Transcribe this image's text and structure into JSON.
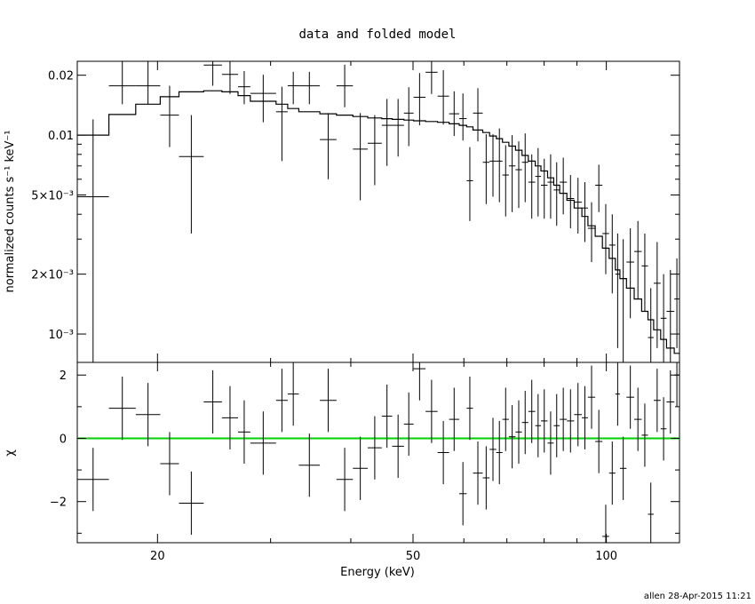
{
  "chart_data": [
    {
      "type": "scatter",
      "panel": "top",
      "title": "data and folded model",
      "ylabel": "normalized counts s⁻¹ keV⁻¹",
      "xscale": "log",
      "yscale": "log",
      "xlim": [
        15,
        130
      ],
      "ylim": [
        0.00072,
        0.0235
      ],
      "yticks": [
        {
          "value": 0.02,
          "label": "0.02"
        },
        {
          "value": 0.01,
          "label": "0.01"
        },
        {
          "value": 0.005,
          "label": "5×10⁻³"
        },
        {
          "value": 0.002,
          "label": "2×10⁻³"
        },
        {
          "value": 0.001,
          "label": "10⁻³"
        }
      ],
      "series": [
        {
          "kind": "data",
          "x_low": [
            15.0,
            16.8,
            18.5,
            20.2,
            21.6,
            23.6,
            25.2,
            26.7,
            27.9,
            30.6,
            31.9,
            33.2,
            35.8,
            38.0,
            40.3,
            42.5,
            44.7,
            46.4,
            48.4,
            50.1,
            52.3,
            54.6,
            56.9,
            59.0,
            60.6,
            62.0,
            64.2,
            65.8,
            67.4,
            68.9,
            70.5,
            72.2,
            73.9,
            75.6,
            77.5,
            79.1,
            81.0,
            82.8,
            84.6,
            86.8,
            89.1,
            91.6,
            93.6,
            96.1,
            98.6,
            101.0,
            103.3,
            105.0,
            107.5,
            110.5,
            113.5,
            116.1,
            118.5,
            121.5,
            124.1,
            127.6
          ],
          "x_high": [
            16.8,
            18.5,
            20.2,
            21.6,
            23.6,
            25.2,
            26.7,
            27.9,
            30.6,
            31.9,
            33.2,
            35.8,
            38.0,
            40.3,
            42.5,
            44.7,
            46.4,
            48.4,
            50.1,
            52.3,
            54.6,
            56.9,
            59.0,
            60.6,
            62.0,
            64.2,
            65.8,
            67.4,
            68.9,
            70.5,
            72.2,
            73.9,
            75.6,
            77.5,
            79.1,
            81.0,
            82.8,
            84.6,
            86.8,
            89.1,
            91.6,
            93.6,
            96.1,
            98.6,
            101.0,
            103.3,
            105.0,
            107.5,
            110.5,
            113.5,
            116.1,
            118.5,
            121.5,
            124.1,
            127.6,
            130.0
          ],
          "y": [
            0.0049,
            0.0177,
            0.0177,
            0.0126,
            0.0078,
            0.0225,
            0.0202,
            0.0175,
            0.0162,
            0.0131,
            0.0177,
            0.0177,
            0.0095,
            0.0177,
            0.0085,
            0.0091,
            0.0112,
            0.0112,
            0.0129,
            0.0155,
            0.0207,
            0.0157,
            0.0128,
            0.0121,
            0.0059,
            0.0129,
            0.0073,
            0.0074,
            0.0074,
            0.0063,
            0.007,
            0.0067,
            0.0073,
            0.0058,
            0.0062,
            0.0056,
            0.0058,
            0.0053,
            0.0058,
            0.0048,
            0.0046,
            0.0043,
            0.0034,
            0.0056,
            0.0032,
            0.0028,
            0.002,
            0.0019,
            0.0023,
            0.0026,
            0.0022,
            0.00096,
            0.0018,
            0.0012,
            0.0013,
            0.0015
          ],
          "y_low": [
            0.00072,
            0.0143,
            0.0143,
            0.0087,
            0.0032,
            0.0177,
            0.0161,
            0.0143,
            0.0116,
            0.0074,
            0.0143,
            0.0143,
            0.006,
            0.0138,
            0.0047,
            0.0056,
            0.007,
            0.0078,
            0.0088,
            0.0112,
            0.0161,
            0.0113,
            0.0099,
            0.0094,
            0.0037,
            0.0093,
            0.0045,
            0.0049,
            0.0046,
            0.0039,
            0.0041,
            0.0043,
            0.0046,
            0.0038,
            0.0039,
            0.0038,
            0.0038,
            0.0035,
            0.004,
            0.0034,
            0.0032,
            0.0029,
            0.0023,
            0.0041,
            0.002,
            0.0016,
            0.00085,
            0.00072,
            0.0012,
            0.0015,
            0.0013,
            0.00072,
            0.00085,
            0.00072,
            0.00072,
            0.00085
          ],
          "y_high": [
            0.012,
            0.0235,
            0.0235,
            0.0177,
            0.0126,
            0.0235,
            0.0235,
            0.021,
            0.0201,
            0.0175,
            0.0208,
            0.0208,
            0.0129,
            0.0226,
            0.0129,
            0.0126,
            0.0152,
            0.0152,
            0.0174,
            0.0205,
            0.0235,
            0.0212,
            0.0166,
            0.0162,
            0.0087,
            0.0172,
            0.0101,
            0.0101,
            0.0108,
            0.0089,
            0.01,
            0.0093,
            0.0102,
            0.008,
            0.0086,
            0.0076,
            0.008,
            0.0073,
            0.0077,
            0.0063,
            0.0061,
            0.0058,
            0.0046,
            0.0071,
            0.0045,
            0.004,
            0.0032,
            0.003,
            0.0034,
            0.0037,
            0.0032,
            0.0017,
            0.0029,
            0.002,
            0.0021,
            0.0024
          ]
        },
        {
          "kind": "model_step",
          "edges": [
            15.0,
            16.8,
            18.5,
            20.2,
            21.6,
            23.6,
            25.2,
            26.7,
            27.9,
            30.6,
            31.9,
            33.2,
            35.8,
            38.0,
            40.3,
            42.5,
            44.7,
            46.4,
            48.4,
            50.1,
            52.3,
            54.6,
            56.9,
            59.0,
            60.6,
            62.0,
            64.2,
            65.8,
            67.4,
            68.9,
            70.5,
            72.2,
            73.9,
            75.6,
            77.5,
            79.1,
            81.0,
            82.8,
            84.6,
            86.8,
            89.1,
            91.6,
            93.6,
            96.1,
            98.6,
            101.0,
            103.3,
            105.0,
            107.5,
            110.5,
            113.5,
            116.1,
            118.5,
            121.5,
            124.1,
            127.6,
            130.0
          ],
          "values": [
            0.01,
            0.0127,
            0.0143,
            0.0156,
            0.0165,
            0.0167,
            0.0165,
            0.0158,
            0.0148,
            0.0143,
            0.0136,
            0.0131,
            0.0128,
            0.0126,
            0.0124,
            0.0122,
            0.0121,
            0.012,
            0.0119,
            0.0118,
            0.0117,
            0.0116,
            0.0114,
            0.0112,
            0.011,
            0.0106,
            0.0103,
            0.0099,
            0.0096,
            0.0092,
            0.0088,
            0.0084,
            0.0079,
            0.0074,
            0.007,
            0.0066,
            0.0061,
            0.0056,
            0.0051,
            0.0047,
            0.0043,
            0.0039,
            0.0035,
            0.0031,
            0.0027,
            0.0024,
            0.0021,
            0.0019,
            0.0017,
            0.0015,
            0.0013,
            0.00118,
            0.00105,
            0.00094,
            0.00085,
            0.0008
          ]
        }
      ]
    },
    {
      "type": "scatter",
      "panel": "bottom",
      "xlabel": "Energy (keV)",
      "ylabel": "χ",
      "xscale": "log",
      "xlim": [
        15,
        130
      ],
      "ylim": [
        -3.3,
        2.4
      ],
      "xticks": [
        {
          "value": 20,
          "label": "20"
        },
        {
          "value": 50,
          "label": "50"
        },
        {
          "value": 100,
          "label": "100"
        }
      ],
      "yticks": [
        {
          "value": 2,
          "label": "2"
        },
        {
          "value": 0,
          "label": "0"
        },
        {
          "value": -2,
          "label": "−2"
        }
      ],
      "reference_line": {
        "y": 0,
        "color": "#00d000"
      },
      "series": [
        {
          "kind": "residuals",
          "x_low": [
            15.0,
            16.8,
            18.5,
            20.2,
            21.6,
            23.6,
            25.2,
            26.7,
            27.9,
            30.6,
            31.9,
            33.2,
            35.8,
            38.0,
            40.3,
            42.5,
            44.7,
            46.4,
            48.4,
            50.1,
            52.3,
            54.6,
            56.9,
            59.0,
            60.6,
            62.0,
            64.2,
            65.8,
            67.4,
            68.9,
            70.5,
            72.2,
            73.9,
            75.6,
            77.5,
            79.1,
            81.0,
            82.8,
            84.6,
            86.8,
            89.1,
            91.6,
            93.6,
            96.1,
            98.6,
            101.0,
            103.3,
            105.0,
            107.5,
            110.5,
            113.5,
            116.1,
            118.5,
            121.5,
            124.1,
            127.6
          ],
          "x_high": [
            16.8,
            18.5,
            20.2,
            21.6,
            23.6,
            25.2,
            26.7,
            27.9,
            30.6,
            31.9,
            33.2,
            35.8,
            38.0,
            40.3,
            42.5,
            44.7,
            46.4,
            48.4,
            50.1,
            52.3,
            54.6,
            56.9,
            59.0,
            60.6,
            62.0,
            64.2,
            65.8,
            67.4,
            68.9,
            70.5,
            72.2,
            73.9,
            75.6,
            77.5,
            79.1,
            81.0,
            82.8,
            84.6,
            86.8,
            89.1,
            91.6,
            93.6,
            96.1,
            98.6,
            101.0,
            103.3,
            105.0,
            107.5,
            110.5,
            113.5,
            116.1,
            118.5,
            121.5,
            124.1,
            127.6,
            130.0
          ],
          "y": [
            -1.3,
            0.95,
            0.75,
            -0.8,
            -2.05,
            1.15,
            0.65,
            0.2,
            -0.15,
            1.2,
            1.4,
            -0.85,
            1.2,
            -1.3,
            -0.95,
            -0.3,
            0.7,
            -0.25,
            0.45,
            2.2,
            0.85,
            -0.45,
            0.6,
            -1.75,
            0.95,
            -1.1,
            -1.25,
            -0.35,
            -0.45,
            0.6,
            0.05,
            0.2,
            0.5,
            0.85,
            0.4,
            0.55,
            -0.15,
            0.4,
            0.6,
            0.55,
            0.75,
            0.65,
            1.3,
            -0.1,
            -3.1,
            -1.1,
            1.4,
            -0.95,
            1.3,
            0.6,
            0.1,
            -2.4,
            1.2,
            0.3,
            1.15,
            2.0
          ],
          "err": [
            1,
            1,
            1,
            1,
            1,
            1,
            1,
            1,
            1,
            1,
            1,
            1,
            1,
            1,
            1,
            1,
            1,
            1,
            1,
            1,
            1,
            1,
            1,
            1,
            1,
            1,
            1,
            1,
            1,
            1,
            1,
            1,
            1,
            1,
            1,
            1,
            1,
            1,
            1,
            1,
            1,
            1,
            1,
            1,
            1,
            1,
            1,
            1,
            1,
            1,
            1,
            1,
            1,
            1,
            1,
            1
          ]
        }
      ]
    }
  ],
  "footer": {
    "stamp": "allen 28-Apr-2015 11:21"
  }
}
